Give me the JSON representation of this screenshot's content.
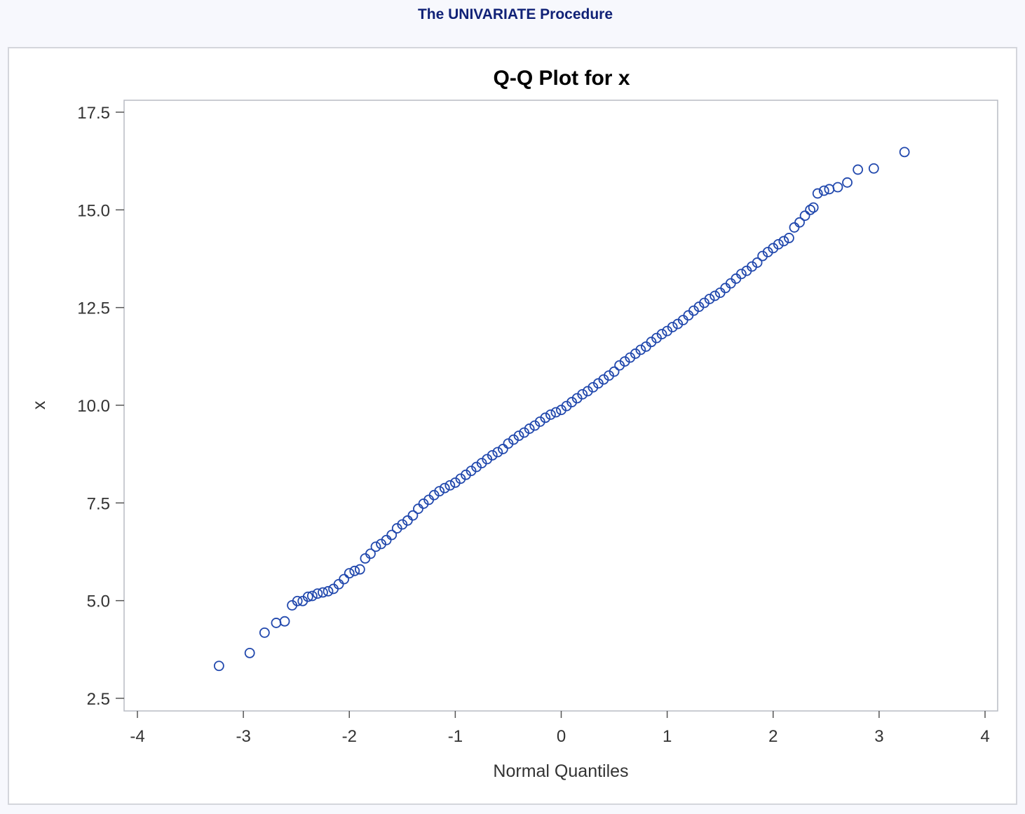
{
  "header": {
    "title": "The UNIVARIATE Procedure"
  },
  "chart_data": {
    "type": "scatter",
    "title": "Q-Q Plot for x",
    "xlabel": "Normal Quantiles",
    "ylabel": "x",
    "xlim": [
      -4.1,
      4.15
    ],
    "ylim": [
      2.2,
      17.8
    ],
    "xticks": [
      -4,
      -3,
      -2,
      -1,
      0,
      1,
      2,
      3,
      4
    ],
    "xtick_labels": [
      "-4",
      "-3",
      "-2",
      "-1",
      "0",
      "1",
      "2",
      "3",
      "4"
    ],
    "yticks": [
      2.5,
      5.0,
      7.5,
      10.0,
      12.5,
      15.0,
      17.5
    ],
    "ytick_labels": [
      "2.5",
      "5.0",
      "7.5",
      "10.0",
      "12.5",
      "15.0",
      "17.5"
    ],
    "grid": false,
    "marker": "open-circle",
    "marker_color": "#2148ad",
    "points": [
      [
        -3.23,
        3.33
      ],
      [
        -2.94,
        3.66
      ],
      [
        -2.8,
        4.18
      ],
      [
        -2.69,
        4.43
      ],
      [
        -2.61,
        4.47
      ],
      [
        -2.54,
        4.88
      ],
      [
        -2.49,
        4.99
      ],
      [
        -2.44,
        4.99
      ],
      [
        -2.39,
        5.1
      ],
      [
        -2.35,
        5.12
      ],
      [
        -2.3,
        5.18
      ],
      [
        -2.25,
        5.21
      ],
      [
        -2.2,
        5.24
      ],
      [
        -2.15,
        5.3
      ],
      [
        -2.1,
        5.42
      ],
      [
        -2.05,
        5.55
      ],
      [
        -2.0,
        5.7
      ],
      [
        -1.95,
        5.76
      ],
      [
        -1.9,
        5.8
      ],
      [
        -1.85,
        6.08
      ],
      [
        -1.8,
        6.2
      ],
      [
        -1.75,
        6.38
      ],
      [
        -1.7,
        6.45
      ],
      [
        -1.65,
        6.55
      ],
      [
        -1.6,
        6.68
      ],
      [
        -1.55,
        6.85
      ],
      [
        -1.5,
        6.95
      ],
      [
        -1.45,
        7.05
      ],
      [
        -1.4,
        7.18
      ],
      [
        -1.35,
        7.35
      ],
      [
        -1.3,
        7.48
      ],
      [
        -1.25,
        7.58
      ],
      [
        -1.2,
        7.7
      ],
      [
        -1.15,
        7.8
      ],
      [
        -1.1,
        7.88
      ],
      [
        -1.05,
        7.95
      ],
      [
        -1.0,
        8.02
      ],
      [
        -0.95,
        8.12
      ],
      [
        -0.9,
        8.22
      ],
      [
        -0.85,
        8.32
      ],
      [
        -0.8,
        8.42
      ],
      [
        -0.75,
        8.52
      ],
      [
        -0.7,
        8.62
      ],
      [
        -0.65,
        8.72
      ],
      [
        -0.6,
        8.8
      ],
      [
        -0.55,
        8.88
      ],
      [
        -0.5,
        9.02
      ],
      [
        -0.45,
        9.12
      ],
      [
        -0.4,
        9.22
      ],
      [
        -0.35,
        9.3
      ],
      [
        -0.3,
        9.4
      ],
      [
        -0.25,
        9.48
      ],
      [
        -0.2,
        9.58
      ],
      [
        -0.15,
        9.68
      ],
      [
        -0.1,
        9.76
      ],
      [
        -0.05,
        9.82
      ],
      [
        0.0,
        9.88
      ],
      [
        0.05,
        9.98
      ],
      [
        0.1,
        10.08
      ],
      [
        0.15,
        10.18
      ],
      [
        0.2,
        10.28
      ],
      [
        0.25,
        10.36
      ],
      [
        0.3,
        10.46
      ],
      [
        0.35,
        10.56
      ],
      [
        0.4,
        10.66
      ],
      [
        0.45,
        10.76
      ],
      [
        0.5,
        10.86
      ],
      [
        0.55,
        11.02
      ],
      [
        0.6,
        11.12
      ],
      [
        0.65,
        11.22
      ],
      [
        0.7,
        11.32
      ],
      [
        0.75,
        11.42
      ],
      [
        0.8,
        11.5
      ],
      [
        0.85,
        11.62
      ],
      [
        0.9,
        11.72
      ],
      [
        0.95,
        11.82
      ],
      [
        1.0,
        11.9
      ],
      [
        1.05,
        12.0
      ],
      [
        1.1,
        12.08
      ],
      [
        1.15,
        12.18
      ],
      [
        1.2,
        12.3
      ],
      [
        1.25,
        12.42
      ],
      [
        1.3,
        12.52
      ],
      [
        1.35,
        12.62
      ],
      [
        1.4,
        12.72
      ],
      [
        1.45,
        12.8
      ],
      [
        1.5,
        12.88
      ],
      [
        1.55,
        13.0
      ],
      [
        1.6,
        13.12
      ],
      [
        1.65,
        13.24
      ],
      [
        1.7,
        13.36
      ],
      [
        1.75,
        13.44
      ],
      [
        1.8,
        13.55
      ],
      [
        1.85,
        13.65
      ],
      [
        1.9,
        13.82
      ],
      [
        1.95,
        13.92
      ],
      [
        2.0,
        14.02
      ],
      [
        2.05,
        14.12
      ],
      [
        2.1,
        14.2
      ],
      [
        2.15,
        14.28
      ],
      [
        2.2,
        14.55
      ],
      [
        2.25,
        14.68
      ],
      [
        2.3,
        14.85
      ],
      [
        2.35,
        15.0
      ],
      [
        2.38,
        15.06
      ],
      [
        2.42,
        15.42
      ],
      [
        2.48,
        15.49
      ],
      [
        2.53,
        15.53
      ],
      [
        2.61,
        15.58
      ],
      [
        2.7,
        15.7
      ],
      [
        2.8,
        16.03
      ],
      [
        2.95,
        16.06
      ],
      [
        3.24,
        16.48
      ]
    ]
  }
}
